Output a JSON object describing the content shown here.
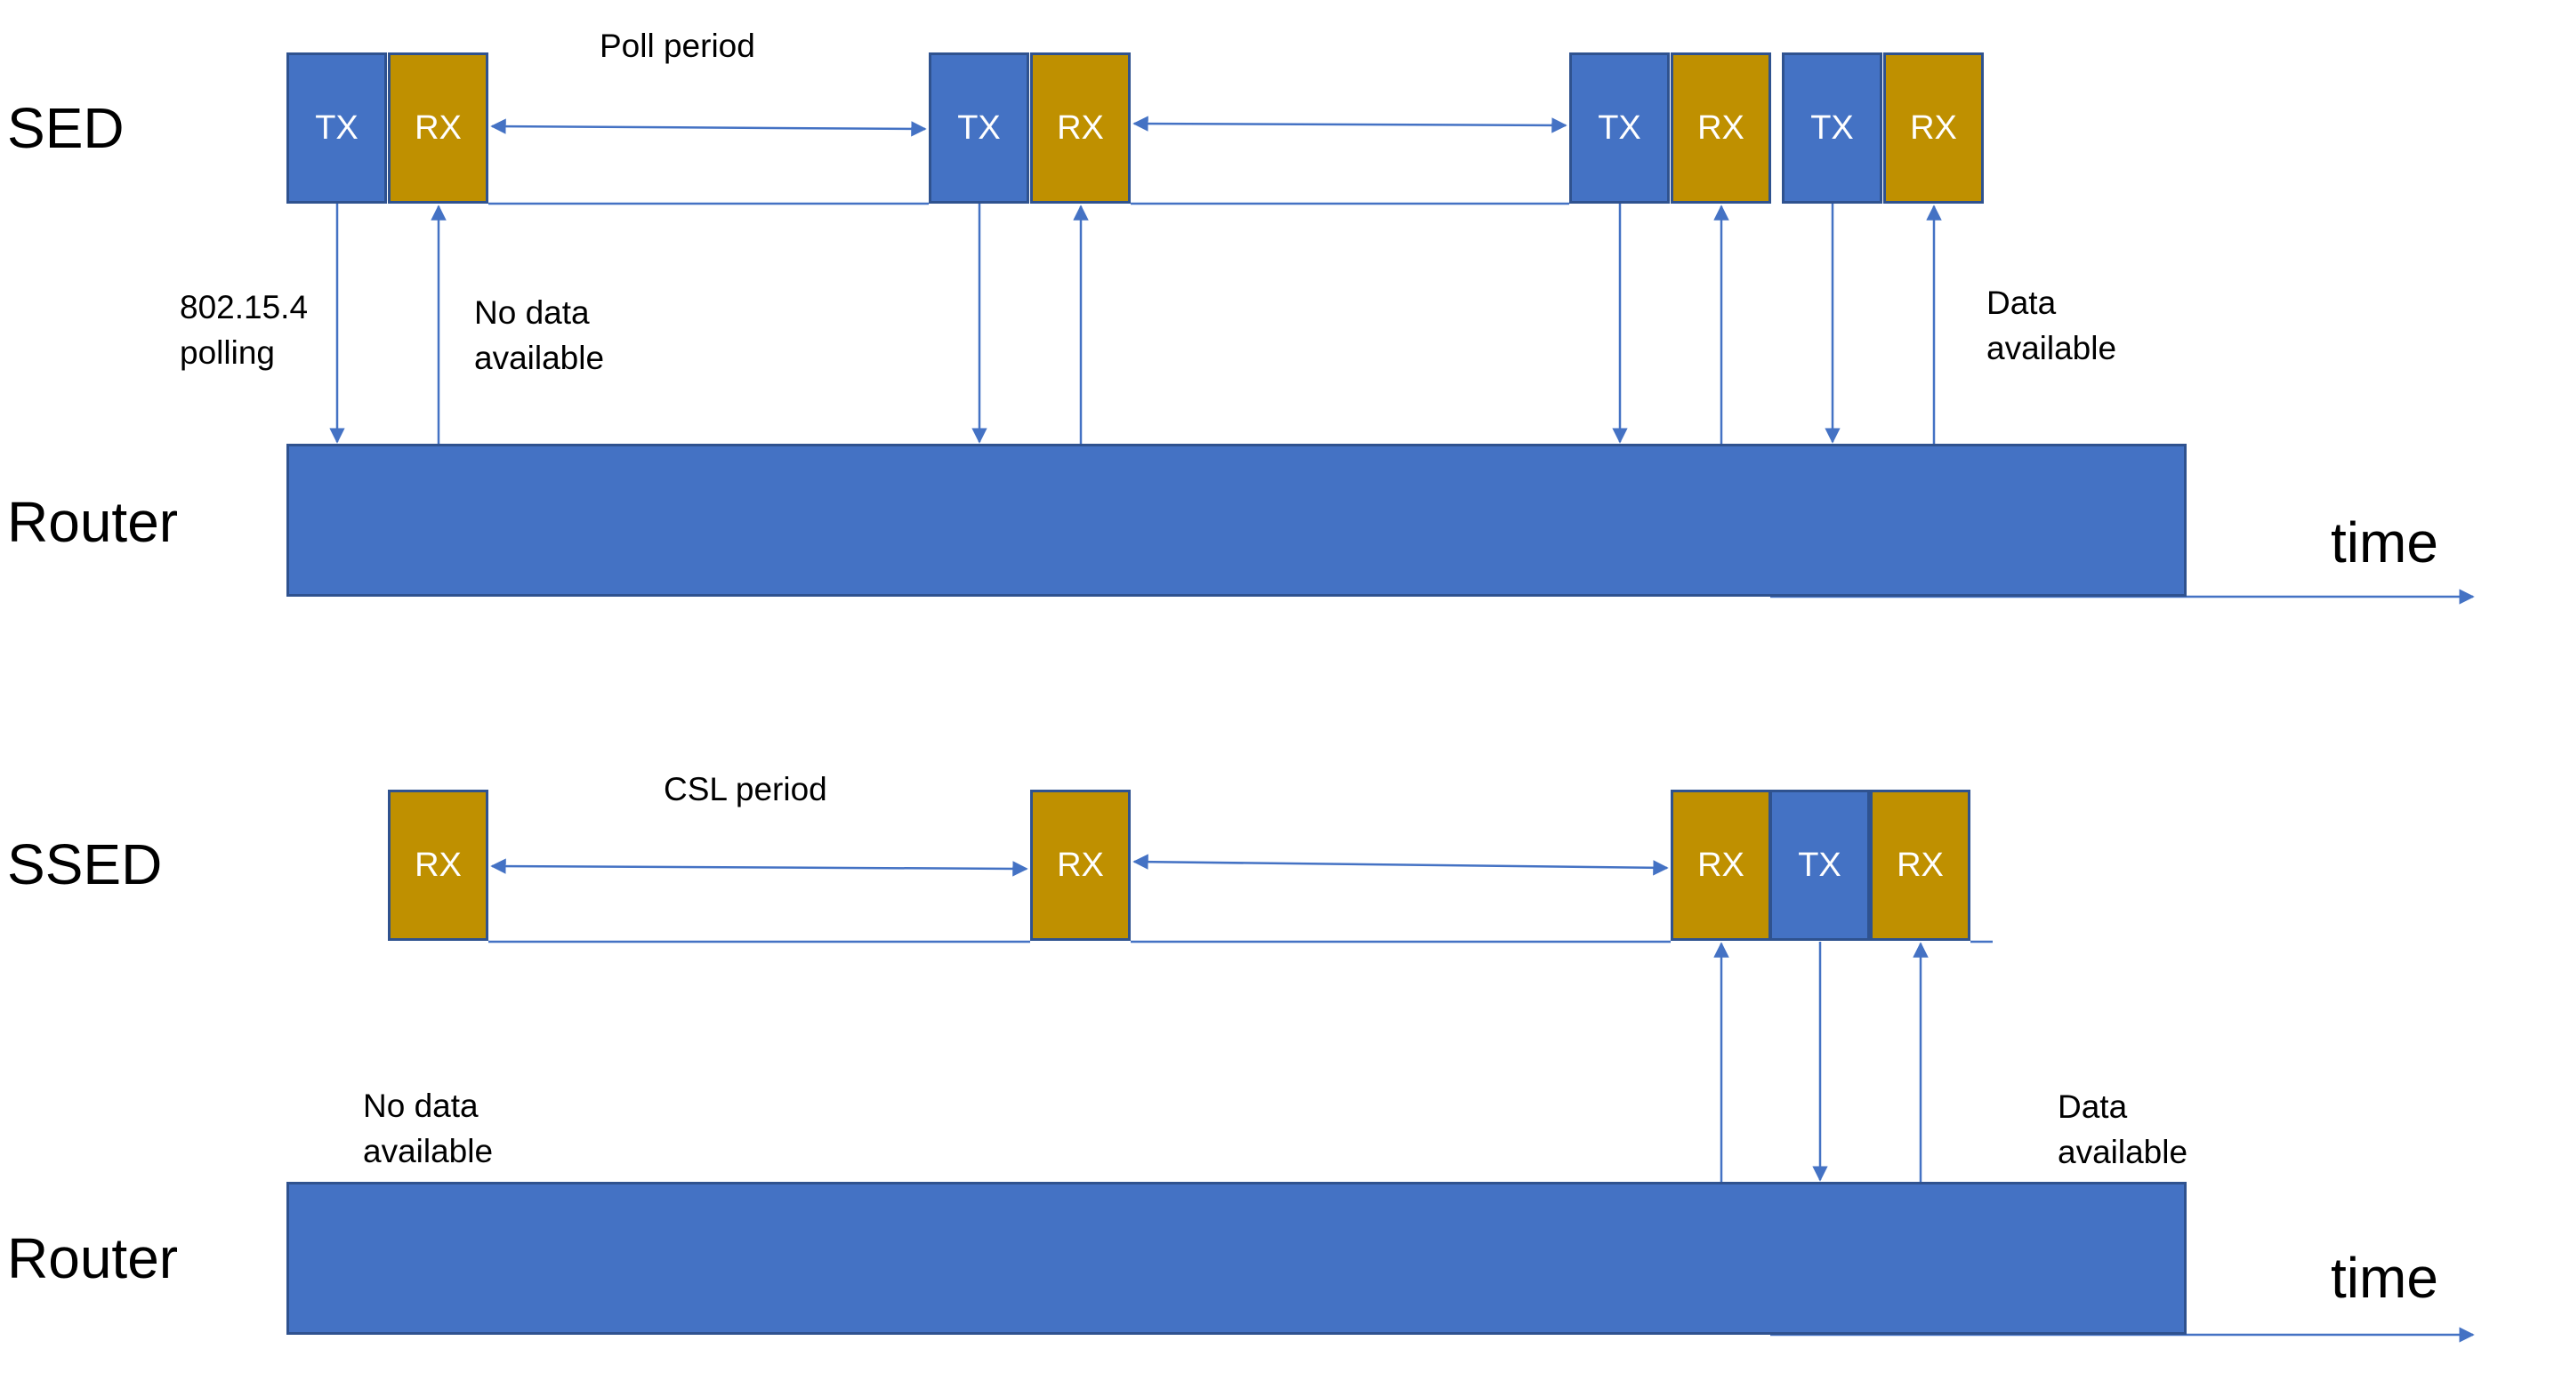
{
  "colors": {
    "tx": "#4472c4",
    "rx": "#bf9000",
    "router": "#4472c4",
    "outline": "#2f528f",
    "connector": "#4472c4"
  },
  "sed_diagram": {
    "device_label": "SED",
    "router_label": "Router",
    "period_label": "Poll period",
    "polling_note": "802.15.4\npolling",
    "no_data_note": "No data\navailable",
    "data_note": "Data\navailable",
    "time_label": "time",
    "slots": [
      {
        "label": "TX",
        "kind": "tx"
      },
      {
        "label": "RX",
        "kind": "rx"
      },
      {
        "label": "TX",
        "kind": "tx"
      },
      {
        "label": "RX",
        "kind": "rx"
      },
      {
        "label": "TX",
        "kind": "tx"
      },
      {
        "label": "RX",
        "kind": "rx"
      },
      {
        "label": "TX",
        "kind": "tx"
      },
      {
        "label": "RX",
        "kind": "rx"
      }
    ]
  },
  "ssed_diagram": {
    "device_label": "SSED",
    "router_label": "Router",
    "period_label": "CSL period",
    "no_data_note": "No data\navailable",
    "data_note": "Data\navailable",
    "time_label": "time",
    "slots": [
      {
        "label": "RX",
        "kind": "rx"
      },
      {
        "label": "RX",
        "kind": "rx"
      },
      {
        "label": "RX",
        "kind": "rx"
      },
      {
        "label": "TX",
        "kind": "tx"
      },
      {
        "label": "RX",
        "kind": "rx"
      }
    ]
  }
}
